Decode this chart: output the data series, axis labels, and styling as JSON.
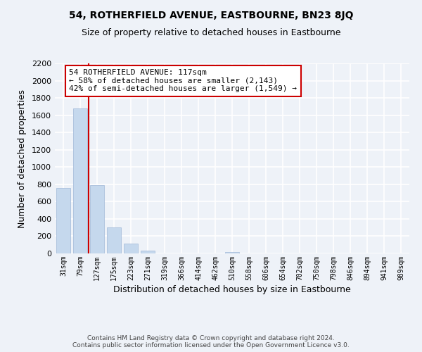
{
  "title": "54, ROTHERFIELD AVENUE, EASTBOURNE, BN23 8JQ",
  "subtitle": "Size of property relative to detached houses in Eastbourne",
  "xlabel": "Distribution of detached houses by size in Eastbourne",
  "ylabel": "Number of detached properties",
  "categories": [
    "31sqm",
    "79sqm",
    "127sqm",
    "175sqm",
    "223sqm",
    "271sqm",
    "319sqm",
    "366sqm",
    "414sqm",
    "462sqm",
    "510sqm",
    "558sqm",
    "606sqm",
    "654sqm",
    "702sqm",
    "750sqm",
    "798sqm",
    "846sqm",
    "894sqm",
    "941sqm",
    "989sqm"
  ],
  "values": [
    760,
    1680,
    790,
    300,
    115,
    35,
    0,
    0,
    0,
    0,
    20,
    0,
    0,
    0,
    0,
    0,
    0,
    0,
    0,
    0,
    0
  ],
  "bar_color": "#c5d8ed",
  "bar_edge_color": "#a0b8d8",
  "vline_color": "#cc0000",
  "annotation_line1": "54 ROTHERFIELD AVENUE: 117sqm",
  "annotation_line2": "← 58% of detached houses are smaller (2,143)",
  "annotation_line3": "42% of semi-detached houses are larger (1,549) →",
  "annotation_box_color": "white",
  "annotation_box_edge_color": "#cc0000",
  "ylim": [
    0,
    2200
  ],
  "yticks": [
    0,
    200,
    400,
    600,
    800,
    1000,
    1200,
    1400,
    1600,
    1800,
    2000,
    2200
  ],
  "footer_line1": "Contains HM Land Registry data © Crown copyright and database right 2024.",
  "footer_line2": "Contains public sector information licensed under the Open Government Licence v3.0.",
  "bg_color": "#eef2f8",
  "grid_color": "white",
  "title_fontsize": 10,
  "subtitle_fontsize": 9
}
